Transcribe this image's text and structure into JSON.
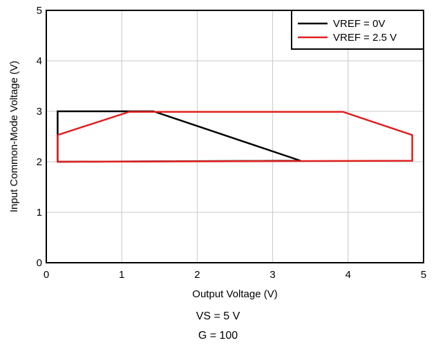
{
  "chart_data": {
    "type": "line",
    "xlabel": "Output Voltage (V)",
    "ylabel": "Input Common-Mode Voltage (V)",
    "xlim": [
      0,
      5
    ],
    "ylim": [
      0,
      5
    ],
    "xticks": [
      "0",
      "1",
      "2",
      "3",
      "4",
      "5"
    ],
    "yticks": [
      "0",
      "1",
      "2",
      "3",
      "4",
      "5"
    ],
    "grid": true,
    "legend_position": "top-right",
    "series": [
      {
        "name": "VREF = 0V",
        "color": "#000000",
        "points": [
          [
            0.15,
            2.0
          ],
          [
            3.37,
            2.02
          ],
          [
            1.42,
            3.0
          ],
          [
            0.15,
            3.0
          ],
          [
            0.15,
            2.0
          ]
        ]
      },
      {
        "name": "VREF = 2.5 V",
        "color": "#e02020",
        "points": [
          [
            0.15,
            2.53
          ],
          [
            1.1,
            2.99
          ],
          [
            3.93,
            2.99
          ],
          [
            4.85,
            2.53
          ],
          [
            4.85,
            2.02
          ],
          [
            0.15,
            2.0
          ],
          [
            0.15,
            2.53
          ]
        ]
      }
    ]
  },
  "captions": {
    "supply": "VS = 5 V",
    "gain": "G = 100"
  }
}
